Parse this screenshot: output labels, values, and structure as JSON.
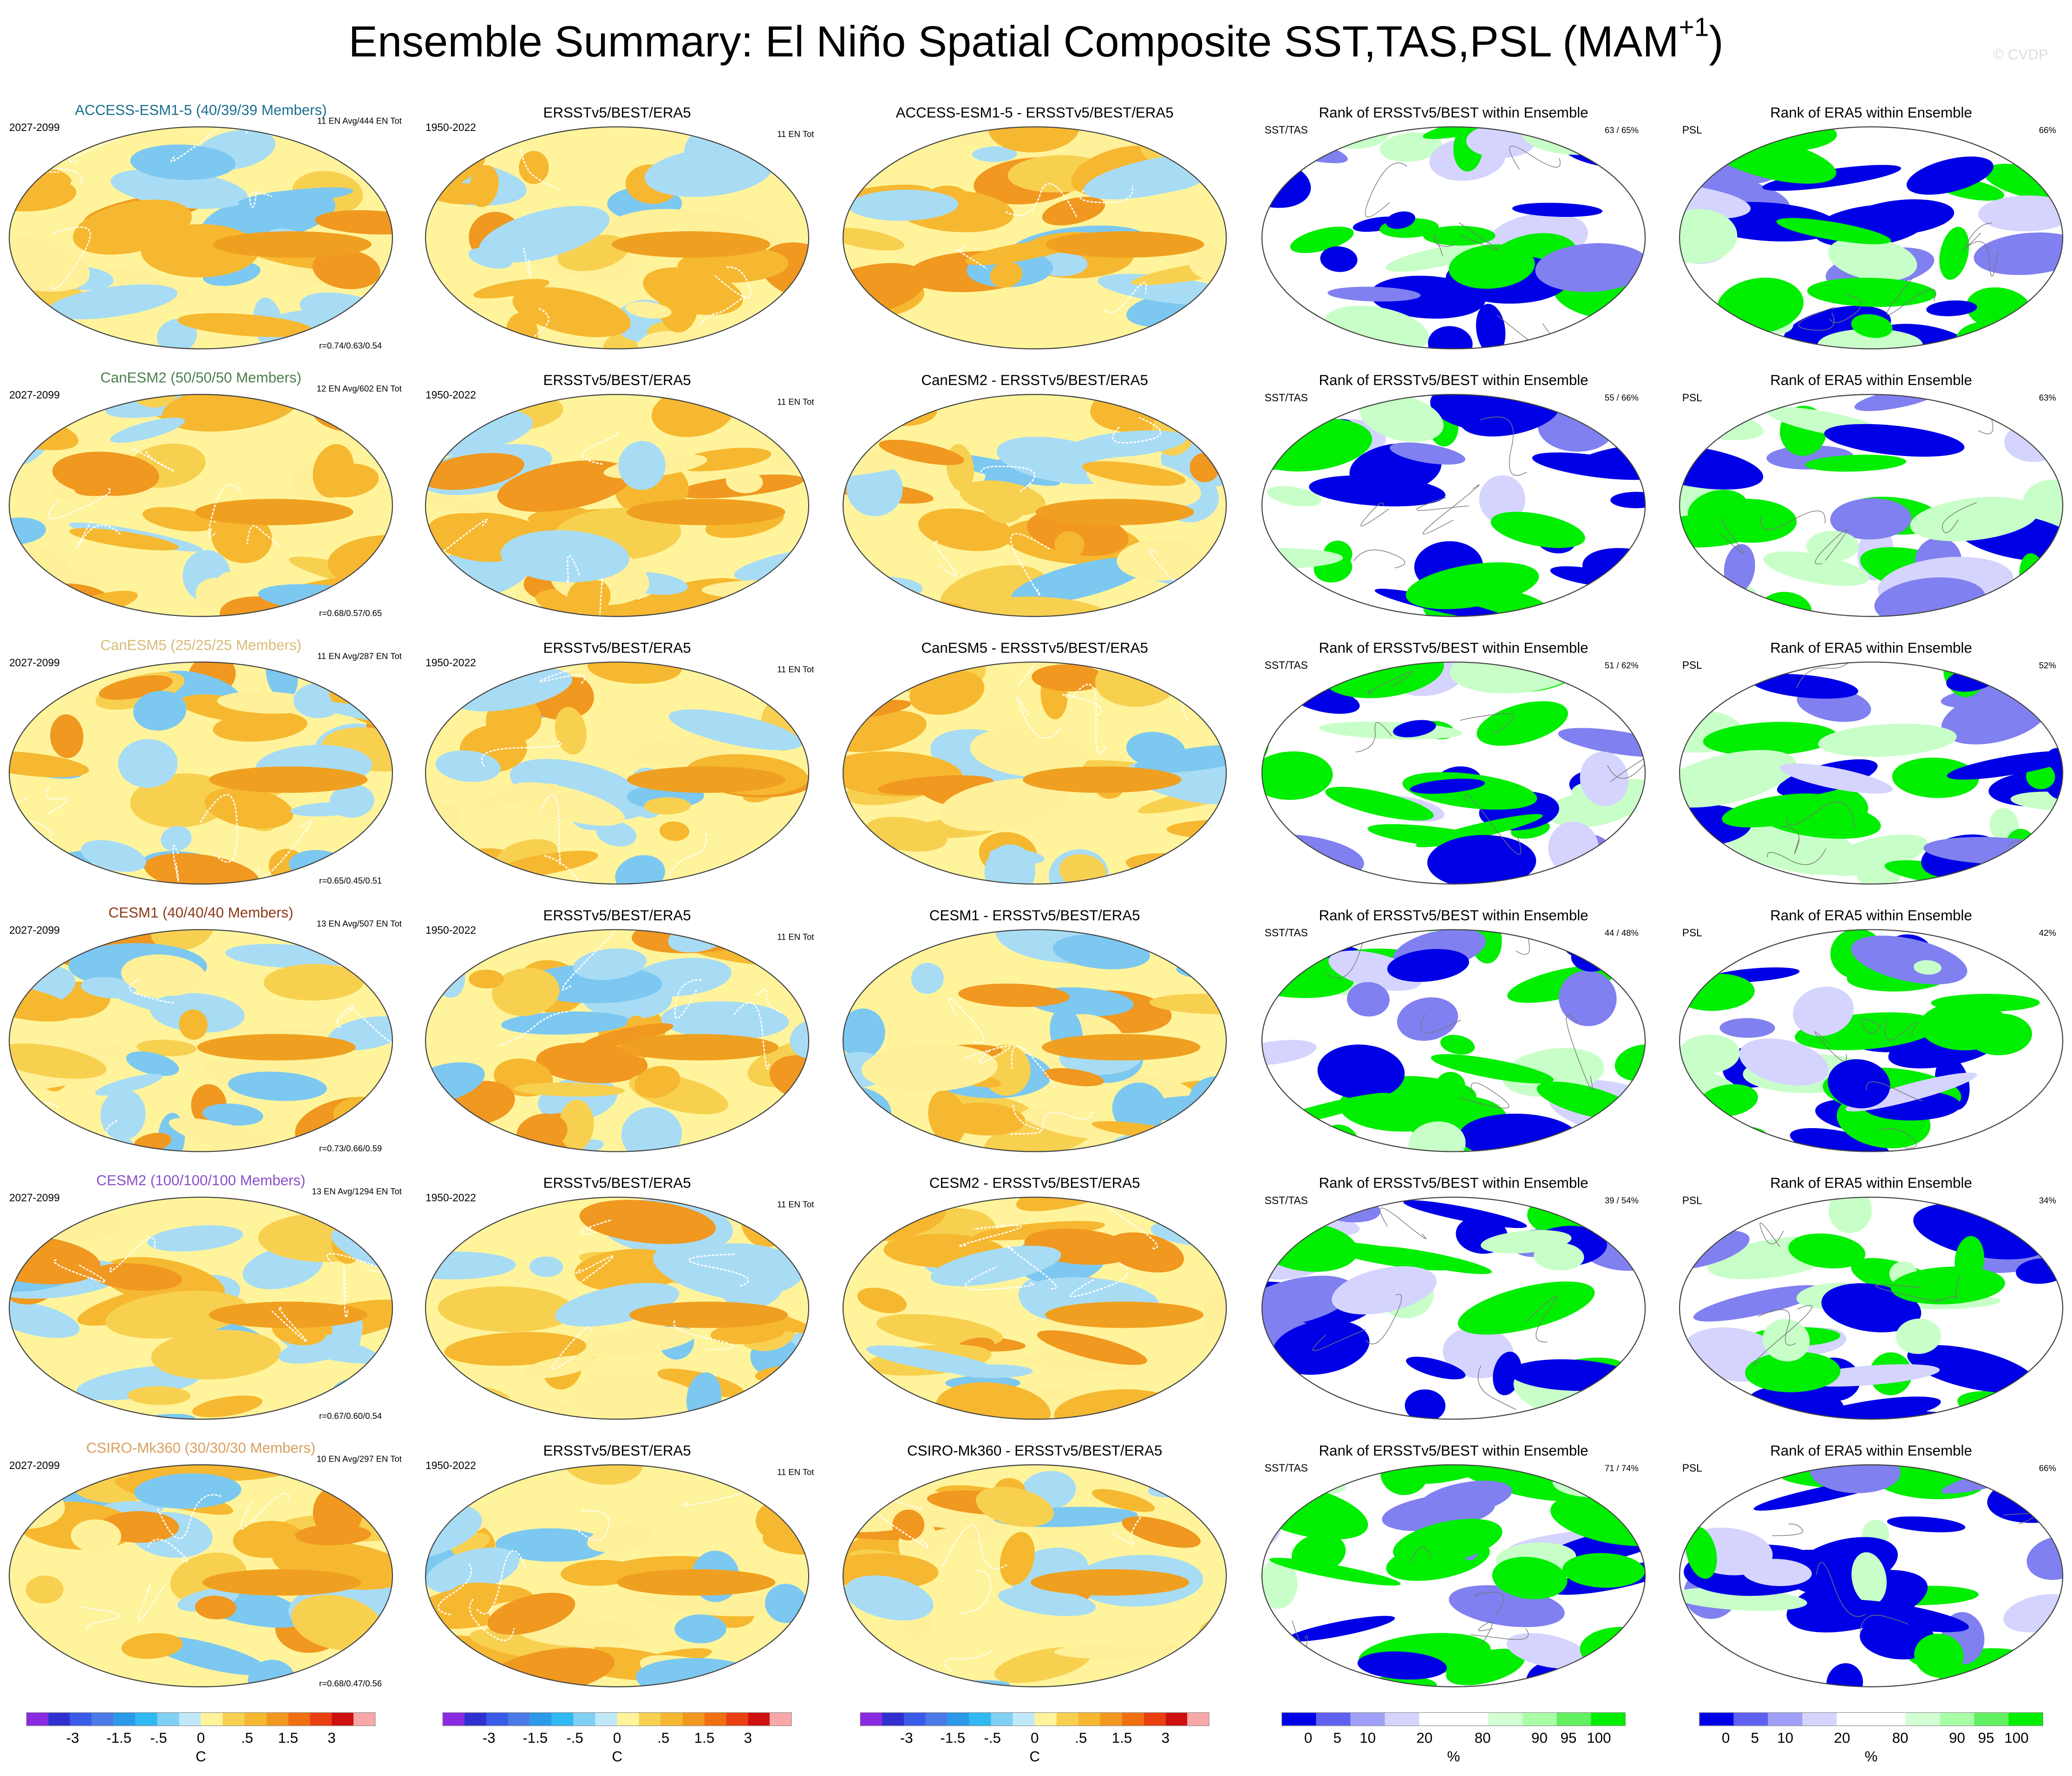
{
  "title": {
    "main": "Ensemble Summary: El Niño Spatial Composite SST,TAS,PSL (MAM",
    "sup": "+1",
    "close": ")"
  },
  "watermark": "© CVDP",
  "obs_title": "ERSSTv5/BEST/ERA5",
  "obs_period": "1950-2022",
  "obs_count": "11 EN Tot",
  "model_period": "2027-2099",
  "rank_title": "Rank of ERSSTv5/BEST within Ensemble",
  "rank_label": "SST/TAS",
  "psl_title": "Rank of ERA5 within Ensemble",
  "psl_label": "PSL",
  "rows": [
    {
      "model": "ACCESS-ESM1-5 (40/39/39 Members)",
      "color": "#1a6e8e",
      "counts": "11 EN Avg/444 EN Tot",
      "r": "r=0.74/0.63/0.54",
      "diff_title": "ACCESS-ESM1-5 - ERSSTv5/BEST/ERA5",
      "rank_pct": "63 /  65%",
      "psl_pct": "66%"
    },
    {
      "model": "CanESM2 (50/50/50 Members)",
      "color": "#4d7f4d",
      "counts": "12 EN Avg/602 EN Tot",
      "r": "r=0.68/0.57/0.65",
      "diff_title": "CanESM2 - ERSSTv5/BEST/ERA5",
      "rank_pct": "55 /  66%",
      "psl_pct": "63%"
    },
    {
      "model": "CanESM5 (25/25/25 Members)",
      "color": "#d8bc78",
      "counts": "11 EN Avg/287 EN Tot",
      "r": "r=0.65/0.45/0.51",
      "diff_title": "CanESM5 - ERSSTv5/BEST/ERA5",
      "rank_pct": "51 /  62%",
      "psl_pct": "52%"
    },
    {
      "model": "CESM1 (40/40/40 Members)",
      "color": "#8b3a1a",
      "counts": "13 EN Avg/507 EN Tot",
      "r": "r=0.73/0.66/0.59",
      "diff_title": "CESM1 - ERSSTv5/BEST/ERA5",
      "rank_pct": "44 /  48%",
      "psl_pct": "42%"
    },
    {
      "model": "CESM2 (100/100/100 Members)",
      "color": "#8a50c8",
      "counts": "13 EN Avg/1294 EN Tot",
      "r": "r=0.67/0.60/0.54",
      "diff_title": "CESM2 - ERSSTv5/BEST/ERA5",
      "rank_pct": "39 /  54%",
      "psl_pct": "34%"
    },
    {
      "model": "CSIRO-Mk360 (30/30/30 Members)",
      "color": "#d8a060",
      "counts": "10 EN Avg/297 EN Tot",
      "r": "r=0.68/0.47/0.56",
      "diff_title": "CSIRO-Mk360 - ERSSTv5/BEST/ERA5",
      "rank_pct": "71 /  74%",
      "psl_pct": "66%"
    }
  ],
  "temp_colorbar": {
    "ticks": [
      "-3",
      "-1.5",
      "-.5",
      "0",
      ".5",
      "1.5",
      "3"
    ],
    "unit": "C"
  },
  "rank_colorbar": {
    "ticks": [
      "0",
      "5",
      "10",
      "20",
      "80",
      "90",
      "95",
      "100"
    ],
    "unit": "%"
  }
}
